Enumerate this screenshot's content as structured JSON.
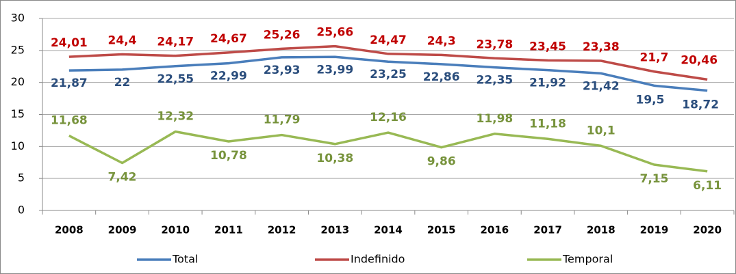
{
  "chart_data": {
    "type": "line",
    "categories": [
      "2008",
      "2009",
      "2010",
      "2011",
      "2012",
      "2013",
      "2014",
      "2015",
      "2016",
      "2017",
      "2018",
      "2019",
      "2020"
    ],
    "series": [
      {
        "name": "Total",
        "color": "#4a7ebb",
        "label_color": "#2a4d7c",
        "values": [
          21.87,
          22,
          22.55,
          22.99,
          23.93,
          23.99,
          23.25,
          22.86,
          22.35,
          21.92,
          21.42,
          19.5,
          18.72
        ],
        "value_labels": [
          "21,87",
          "22",
          "22,55",
          "22,99",
          "23,93",
          "23,99",
          "23,25",
          "22,86",
          "22,35",
          "21,92",
          "21,42",
          "19,5",
          "18,72"
        ]
      },
      {
        "name": "Indefinido",
        "color": "#be4b48",
        "label_color": "#c00000",
        "values": [
          24.01,
          24.4,
          24.17,
          24.67,
          25.26,
          25.66,
          24.47,
          24.3,
          23.78,
          23.45,
          23.38,
          21.7,
          20.46
        ],
        "value_labels": [
          "24,01",
          "24,4",
          "24,17",
          "24,67",
          "25,26",
          "25,66",
          "24,47",
          "24,3",
          "23,78",
          "23,45",
          "23,38",
          "21,7",
          "20,46"
        ]
      },
      {
        "name": "Temporal",
        "color": "#98b954",
        "label_color": "#77933c",
        "values": [
          11.68,
          7.42,
          12.32,
          10.78,
          11.79,
          10.38,
          12.16,
          9.86,
          11.98,
          11.18,
          10.1,
          7.15,
          6.11
        ],
        "value_labels": [
          "11,68",
          "7,42",
          "12,32",
          "10,78",
          "11,79",
          "10,38",
          "12,16",
          "9,86",
          "11,98",
          "11,18",
          "10,1",
          "7,15",
          "6,11"
        ]
      }
    ],
    "ylim": [
      0,
      30
    ],
    "yticks": [
      0,
      5,
      10,
      15,
      20,
      25,
      30
    ],
    "grid": true,
    "legend": "bottom"
  }
}
